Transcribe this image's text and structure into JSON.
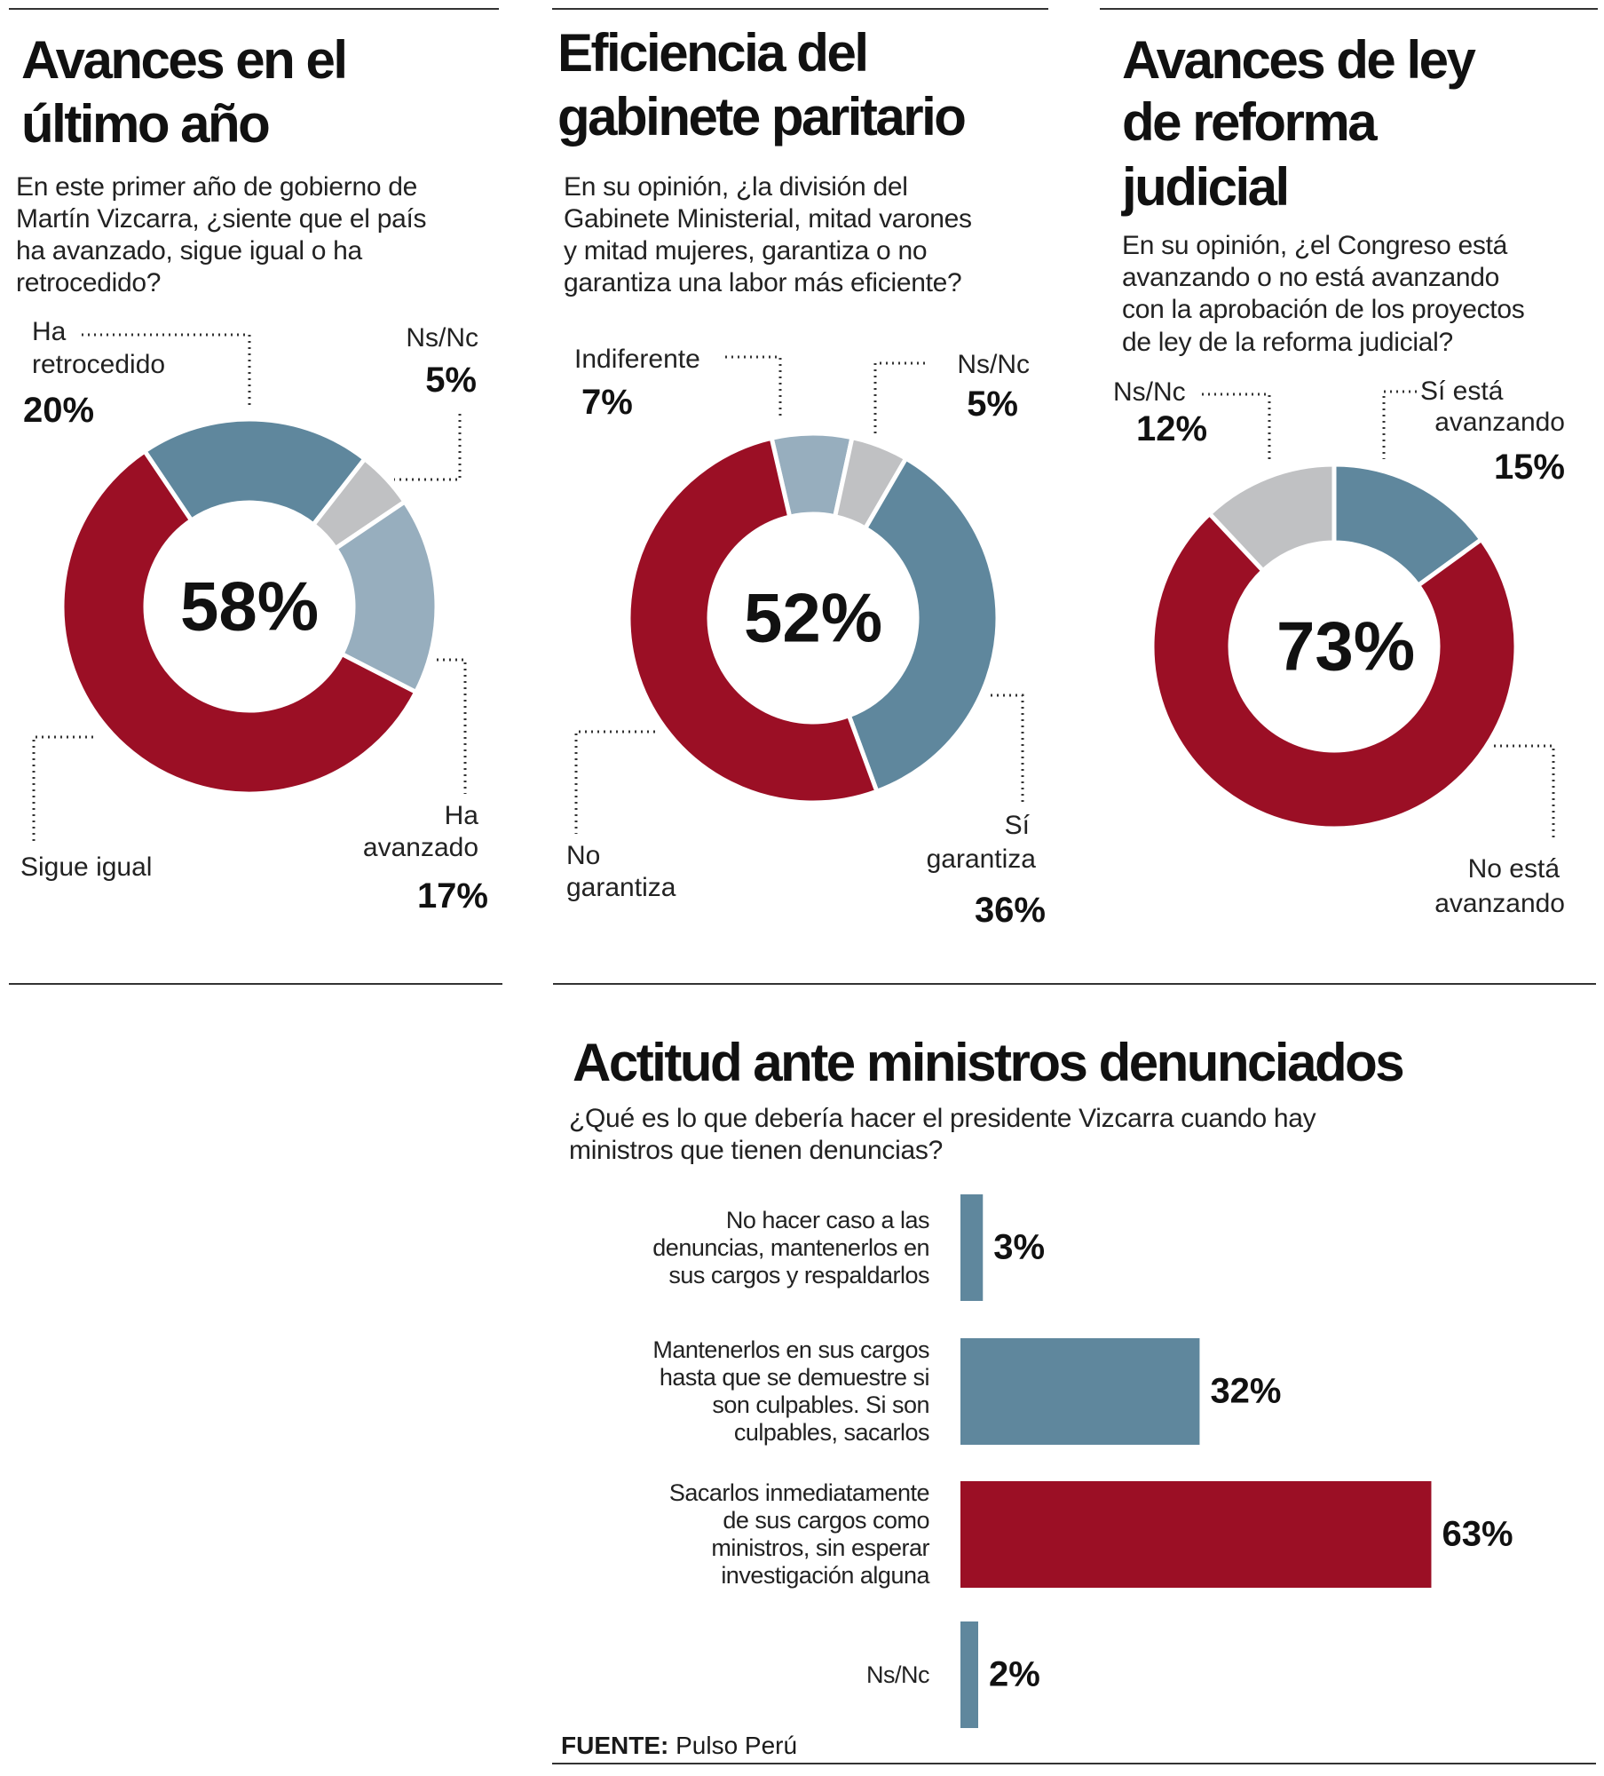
{
  "colors": {
    "red": "#9b0f25",
    "blue": "#5f879d",
    "light_blue": "#97aebe",
    "gray": "#c0c1c3"
  },
  "chart_data": [
    {
      "type": "pie",
      "variant": "donut",
      "title": [
        "Avances en el",
        "último año"
      ],
      "question": [
        "En este primer año de gobierno de",
        "Martín Vizcarra, ¿siente que el país",
        "ha avanzado, sigue igual o ha",
        "retrocedido?"
      ],
      "center_label": "58%",
      "slices": [
        {
          "label": "Ha retrocedido",
          "label_lines": [
            "Ha",
            "retrocedido"
          ],
          "value": 20,
          "value_label": "20%",
          "color": "#5f879d"
        },
        {
          "label": "Ns/Nc",
          "label_lines": [
            "Ns/Nc"
          ],
          "value": 5,
          "value_label": "5%",
          "color": "#c0c1c3"
        },
        {
          "label": "Ha avanzado",
          "label_lines": [
            "Ha",
            "avanzado"
          ],
          "value": 17,
          "value_label": "17%",
          "color": "#97aebe"
        },
        {
          "label": "Sigue igual",
          "label_lines": [
            "Sigue igual"
          ],
          "value": 58,
          "value_label": "",
          "color": "#9b0f25"
        }
      ]
    },
    {
      "type": "pie",
      "variant": "donut",
      "title": [
        "Eficiencia del",
        "gabinete paritario"
      ],
      "question": [
        "En su opinión, ¿la división del",
        "Gabinete Ministerial, mitad varones",
        "y mitad mujeres,  garantiza o no",
        "garantiza una labor más eficiente?"
      ],
      "center_label": "52%",
      "slices": [
        {
          "label": "Indiferente",
          "label_lines": [
            "Indiferente"
          ],
          "value": 7,
          "value_label": "7%",
          "color": "#97aebe"
        },
        {
          "label": "Ns/Nc",
          "label_lines": [
            "Ns/Nc"
          ],
          "value": 5,
          "value_label": "5%",
          "color": "#c0c1c3"
        },
        {
          "label": "Sí garantiza",
          "label_lines": [
            "Sí",
            "garantiza"
          ],
          "value": 36,
          "value_label": "36%",
          "color": "#5f879d"
        },
        {
          "label": "No garantiza",
          "label_lines": [
            "No",
            "garantiza"
          ],
          "value": 52,
          "value_label": "",
          "color": "#9b0f25"
        }
      ]
    },
    {
      "type": "pie",
      "variant": "donut",
      "title": [
        "Avances de ley",
        "de reforma",
        "judicial"
      ],
      "question": [
        "En su opinión, ¿el Congreso está",
        "avanzando o no está avanzando",
        "con la aprobación de los proyectos",
        "de ley de la reforma judicial?"
      ],
      "center_label": "73%",
      "slices": [
        {
          "label": "Sí está avanzando",
          "label_lines": [
            "Sí está",
            "avanzando"
          ],
          "value": 15,
          "value_label": "15%",
          "color": "#5f879d"
        },
        {
          "label": "No está avanzando",
          "label_lines": [
            "No está",
            "avanzando"
          ],
          "value": 73,
          "value_label": "",
          "color": "#9b0f25"
        },
        {
          "label": "Ns/Nc",
          "label_lines": [
            "Ns/Nc"
          ],
          "value": 12,
          "value_label": "12%",
          "color": "#c0c1c3"
        }
      ]
    },
    {
      "type": "bar",
      "orientation": "horizontal",
      "title": "Actitud ante ministros denunciados",
      "question": [
        "¿Qué es lo que debería hacer el presidente Vizcarra cuando hay",
        "ministros que tienen denuncias?"
      ],
      "categories": [
        [
          "No hacer caso a las",
          "denuncias, mantenerlos en",
          "sus cargos y respaldarlos"
        ],
        [
          "Mantenerlos en sus cargos",
          "hasta que se demuestre si",
          "son culpables.  Si son",
          "culpables, sacarlos"
        ],
        [
          "Sacarlos inmediatamente",
          "de sus cargos como",
          "ministros, sin esperar",
          "investigación alguna"
        ],
        [
          "Ns/Nc"
        ]
      ],
      "values": [
        3,
        32,
        63,
        2
      ],
      "value_labels": [
        "3%",
        "32%",
        "63%",
        "2%"
      ],
      "colors": [
        "#5f879d",
        "#5f879d",
        "#9b0f25",
        "#5f879d"
      ],
      "grid": false
    }
  ],
  "source": {
    "label": "FUENTE:",
    "value": " Pulso Perú"
  }
}
